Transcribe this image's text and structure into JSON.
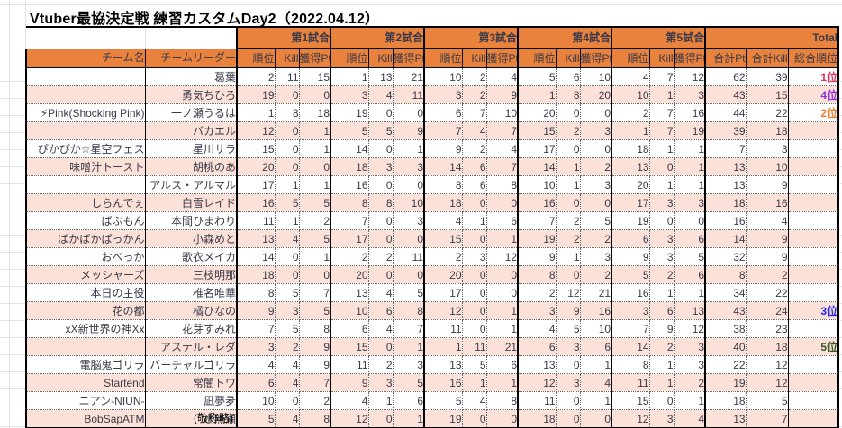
{
  "title": "Vtuber最協決定戦 練習カスタムDay2（2022.04.12）",
  "footnote": "(敬称略)",
  "headers": {
    "team": "チーム名",
    "leader": "チームリーダー",
    "matches": [
      "第1試合",
      "第2試合",
      "第3試合",
      "第4試合",
      "第5試合"
    ],
    "total": "Total",
    "sub": [
      "順位",
      "Kill",
      "獲得Pt"
    ],
    "total_sub": [
      "合計Pt",
      "合計Kill",
      "総合順位"
    ]
  },
  "colors": {
    "orange": "#e8823c",
    "pink": "#fbe1d8",
    "htext": "#fff3cf",
    "mtext": "#000000",
    "num": "#3b3a4a",
    "grid": "#dfe3e8",
    "dot": "#6a6a6a",
    "rank_colors": {
      "1位": "#e62e5c",
      "2位": "#ed7d31",
      "3位": "#2222ee",
      "4位": "#9230e0",
      "5位": "#375623"
    }
  },
  "rows": [
    {
      "team": "",
      "leader": "葛葉",
      "m": [
        [
          2,
          11,
          15
        ],
        [
          1,
          13,
          21
        ],
        [
          10,
          2,
          4
        ],
        [
          5,
          6,
          10
        ],
        [
          4,
          7,
          12
        ]
      ],
      "total_pt": 62,
      "total_kill": 39,
      "rank": "1位"
    },
    {
      "team": "",
      "leader": "勇気ちひろ",
      "m": [
        [
          19,
          0,
          0
        ],
        [
          3,
          4,
          11
        ],
        [
          3,
          2,
          9
        ],
        [
          1,
          8,
          20
        ],
        [
          10,
          1,
          3
        ]
      ],
      "total_pt": 43,
      "total_kill": 15,
      "rank": "4位"
    },
    {
      "team": "⚡Pink(Shocking Pink)",
      "leader": "一ノ瀬うるは",
      "m": [
        [
          1,
          8,
          18
        ],
        [
          19,
          0,
          0
        ],
        [
          6,
          7,
          10
        ],
        [
          20,
          0,
          0
        ],
        [
          2,
          7,
          16
        ]
      ],
      "total_pt": 44,
      "total_kill": 22,
      "rank": "2位"
    },
    {
      "team": "",
      "leader": "バカエル",
      "m": [
        [
          12,
          0,
          1
        ],
        [
          5,
          5,
          9
        ],
        [
          7,
          4,
          7
        ],
        [
          15,
          2,
          3
        ],
        [
          1,
          7,
          19
        ]
      ],
      "total_pt": 39,
      "total_kill": 18,
      "rank": ""
    },
    {
      "team": "ぴかぴか☆星空フェス",
      "leader": "星川サラ",
      "m": [
        [
          15,
          0,
          1
        ],
        [
          14,
          0,
          1
        ],
        [
          9,
          2,
          4
        ],
        [
          17,
          0,
          0
        ],
        [
          18,
          1,
          1
        ]
      ],
      "total_pt": 7,
      "total_kill": 3,
      "rank": ""
    },
    {
      "team": "味噌汁トースト",
      "leader": "胡桃のあ",
      "m": [
        [
          20,
          0,
          0
        ],
        [
          18,
          3,
          3
        ],
        [
          14,
          6,
          7
        ],
        [
          14,
          1,
          2
        ],
        [
          13,
          0,
          1
        ]
      ],
      "total_pt": 13,
      "total_kill": 10,
      "rank": ""
    },
    {
      "team": "",
      "leader": "アルス・アルマル",
      "m": [
        [
          17,
          1,
          1
        ],
        [
          16,
          0,
          0
        ],
        [
          8,
          6,
          8
        ],
        [
          10,
          1,
          3
        ],
        [
          20,
          1,
          1
        ]
      ],
      "total_pt": 13,
      "total_kill": 9,
      "rank": ""
    },
    {
      "team": "しらんでぇ",
      "leader": "白雪レイド",
      "m": [
        [
          16,
          5,
          5
        ],
        [
          8,
          8,
          10
        ],
        [
          18,
          0,
          0
        ],
        [
          16,
          0,
          0
        ],
        [
          17,
          3,
          3
        ]
      ],
      "total_pt": 18,
      "total_kill": 16,
      "rank": ""
    },
    {
      "team": "ばぶもん",
      "leader": "本間ひまわり",
      "m": [
        [
          11,
          1,
          2
        ],
        [
          7,
          0,
          3
        ],
        [
          4,
          1,
          6
        ],
        [
          7,
          2,
          5
        ],
        [
          19,
          0,
          0
        ]
      ],
      "total_pt": 16,
      "total_kill": 4,
      "rank": ""
    },
    {
      "team": "ぱかぱかぱっかん",
      "leader": "小森めと",
      "m": [
        [
          13,
          4,
          5
        ],
        [
          17,
          0,
          0
        ],
        [
          15,
          0,
          1
        ],
        [
          19,
          2,
          2
        ],
        [
          6,
          3,
          6
        ]
      ],
      "total_pt": 14,
      "total_kill": 9,
      "rank": ""
    },
    {
      "team": "おべっか",
      "leader": "歌衣メイカ",
      "m": [
        [
          14,
          0,
          1
        ],
        [
          2,
          2,
          11
        ],
        [
          2,
          3,
          12
        ],
        [
          9,
          1,
          3
        ],
        [
          9,
          3,
          5
        ]
      ],
      "total_pt": 32,
      "total_kill": 9,
      "rank": ""
    },
    {
      "team": "メッシャーズ",
      "leader": "三枝明那",
      "m": [
        [
          18,
          0,
          0
        ],
        [
          20,
          0,
          0
        ],
        [
          20,
          0,
          0
        ],
        [
          8,
          0,
          2
        ],
        [
          5,
          2,
          6
        ]
      ],
      "total_pt": 8,
      "total_kill": 2,
      "rank": ""
    },
    {
      "team": "本日の主役",
      "leader": "椎名唯華",
      "m": [
        [
          8,
          5,
          7
        ],
        [
          13,
          4,
          5
        ],
        [
          17,
          0,
          0
        ],
        [
          2,
          12,
          21
        ],
        [
          16,
          1,
          1
        ]
      ],
      "total_pt": 34,
      "total_kill": 22,
      "rank": ""
    },
    {
      "team": "花の都",
      "leader": "橘ひなの",
      "m": [
        [
          9,
          3,
          5
        ],
        [
          10,
          6,
          8
        ],
        [
          12,
          0,
          1
        ],
        [
          3,
          9,
          16
        ],
        [
          3,
          6,
          13
        ]
      ],
      "total_pt": 43,
      "total_kill": 24,
      "rank": "3位"
    },
    {
      "team": "xX新世界の神Xx",
      "leader": "花芽すみれ",
      "m": [
        [
          7,
          5,
          8
        ],
        [
          6,
          4,
          7
        ],
        [
          11,
          0,
          1
        ],
        [
          4,
          5,
          10
        ],
        [
          7,
          9,
          12
        ]
      ],
      "total_pt": 38,
      "total_kill": 23,
      "rank": ""
    },
    {
      "team": "",
      "leader": "アステル・レダ",
      "m": [
        [
          3,
          2,
          9
        ],
        [
          15,
          0,
          1
        ],
        [
          1,
          11,
          21
        ],
        [
          6,
          3,
          6
        ],
        [
          14,
          2,
          3
        ]
      ],
      "total_pt": 40,
      "total_kill": 18,
      "rank": "5位"
    },
    {
      "team": "電脳鬼ゴリラ",
      "leader": "バーチャルゴリラ",
      "m": [
        [
          4,
          4,
          9
        ],
        [
          11,
          2,
          3
        ],
        [
          13,
          5,
          6
        ],
        [
          13,
          0,
          1
        ],
        [
          8,
          1,
          3
        ]
      ],
      "total_pt": 22,
      "total_kill": 12,
      "rank": ""
    },
    {
      "team": "Startend",
      "leader": "常闇トワ",
      "m": [
        [
          6,
          4,
          7
        ],
        [
          9,
          3,
          5
        ],
        [
          16,
          1,
          1
        ],
        [
          12,
          3,
          4
        ],
        [
          11,
          1,
          2
        ]
      ],
      "total_pt": 19,
      "total_kill": 12,
      "rank": ""
    },
    {
      "team": "ニアン-NIUN-",
      "leader": "凪夢夛",
      "m": [
        [
          10,
          0,
          2
        ],
        [
          4,
          1,
          6
        ],
        [
          5,
          4,
          8
        ],
        [
          11,
          0,
          1
        ],
        [
          15,
          0,
          1
        ]
      ],
      "total_pt": 18,
      "total_kill": 5,
      "rank": ""
    },
    {
      "team": "BobSapATM",
      "leader": "水無瀬",
      "m": [
        [
          5,
          4,
          8
        ],
        [
          12,
          0,
          1
        ],
        [
          19,
          0,
          0
        ],
        [
          18,
          0,
          0
        ],
        [
          12,
          3,
          4
        ]
      ],
      "total_pt": 13,
      "total_kill": 7,
      "rank": ""
    }
  ]
}
